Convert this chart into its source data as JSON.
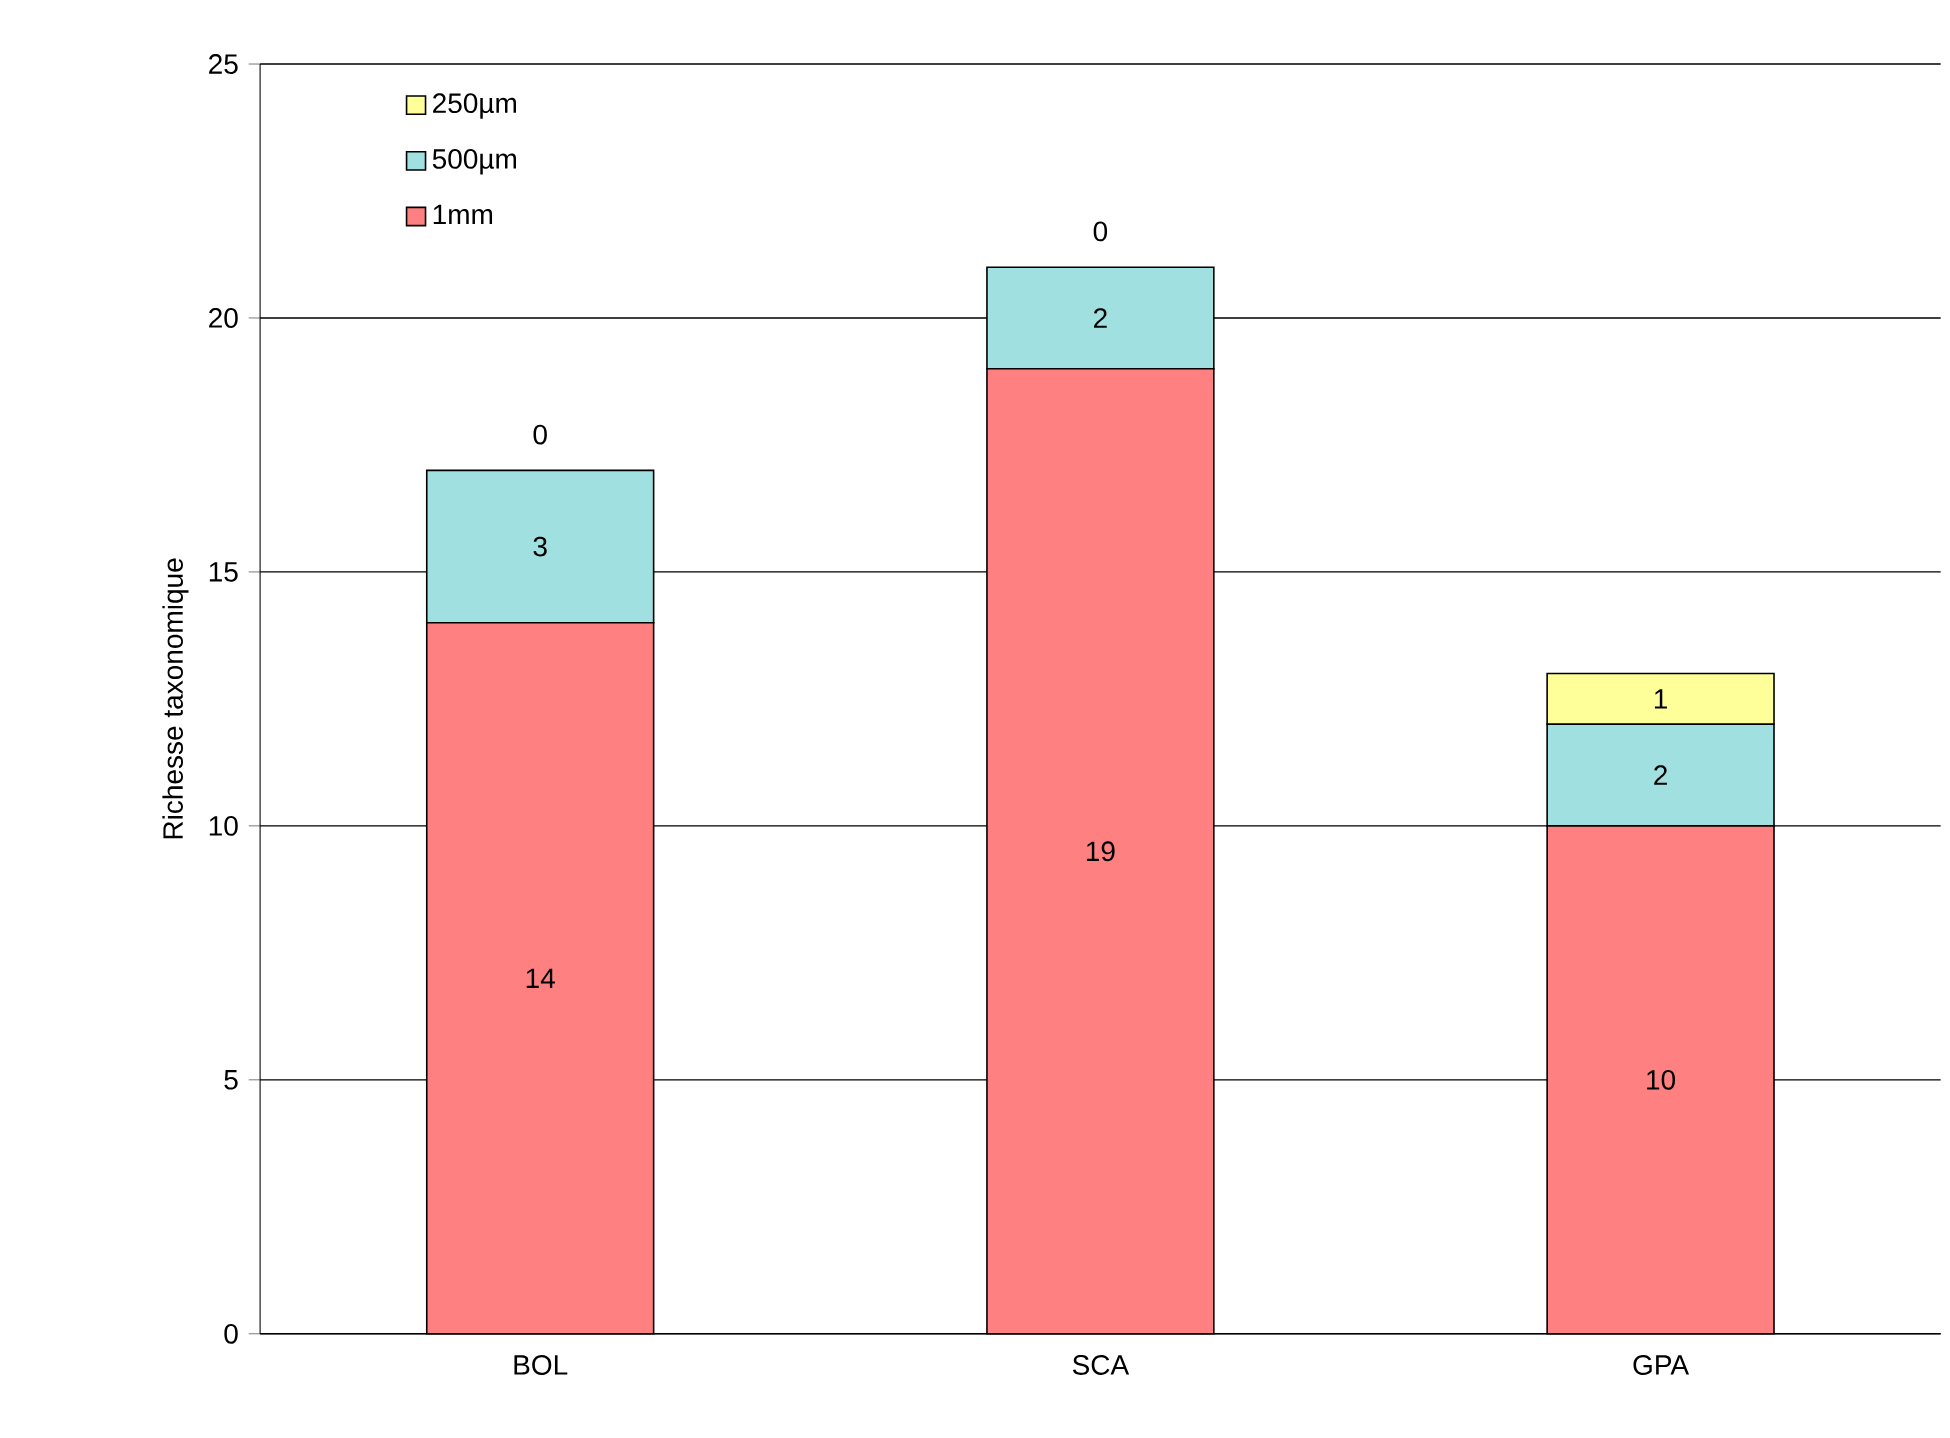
{
  "chart_data": {
    "type": "bar",
    "stacked": true,
    "ylabel": "Richesse taxonomique",
    "categories": [
      "BOL",
      "SCA",
      "GPA"
    ],
    "series": [
      {
        "name": "1mm",
        "color": "#ff8080",
        "values": [
          14,
          19,
          10
        ]
      },
      {
        "name": "500µm",
        "color": "#a0e0e0",
        "values": [
          3,
          2,
          2
        ]
      },
      {
        "name": "250µm",
        "color": "#ffff99",
        "values": [
          0,
          0,
          1
        ]
      }
    ],
    "ylim": [
      0,
      25
    ],
    "yticks": [
      0,
      5,
      10,
      15,
      20,
      25
    ],
    "grid": "y",
    "legend": "top left",
    "data_labels": true
  }
}
